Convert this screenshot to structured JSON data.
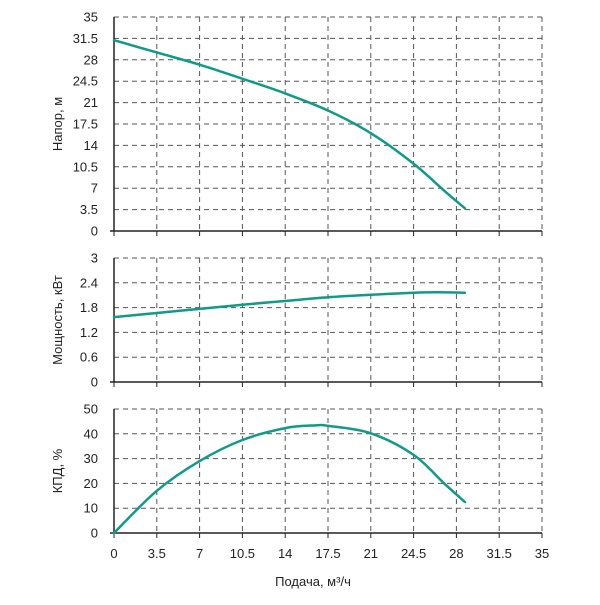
{
  "chart_data": [
    {
      "type": "line",
      "ylabel": "Напор, м",
      "xlim": [
        0,
        35
      ],
      "ylim": [
        0,
        35
      ],
      "xticks": [
        "0",
        "3.5",
        "7",
        "10.5",
        "14",
        "17.5",
        "21",
        "24.5",
        "28",
        "31.5",
        "35"
      ],
      "yticks": [
        "0",
        "3.5",
        "7",
        "10.5",
        "14",
        "17.5",
        "21",
        "24.5",
        "28",
        "31.5",
        "35"
      ],
      "grid": true,
      "show_xtick_labels": false,
      "series": [
        {
          "x": [
            0,
            3.5,
            7,
            10.5,
            14,
            17.5,
            21,
            24.5,
            27,
            28.7
          ],
          "y": [
            31.2,
            29.2,
            27.2,
            24.9,
            22.5,
            19.7,
            16.0,
            11.0,
            6.6,
            3.7
          ]
        }
      ]
    },
    {
      "type": "line",
      "ylabel": "Мощность, кВт",
      "xlim": [
        0,
        35
      ],
      "ylim": [
        0,
        3
      ],
      "xticks": [
        "0",
        "3.5",
        "7",
        "10.5",
        "14",
        "17.5",
        "21",
        "24.5",
        "28",
        "31.5",
        "35"
      ],
      "yticks": [
        "0",
        "0.6",
        "1.2",
        "1.8",
        "2.4",
        "3"
      ],
      "grid": true,
      "show_xtick_labels": false,
      "series": [
        {
          "x": [
            0,
            3.5,
            7,
            10.5,
            14,
            17.5,
            21,
            24.5,
            26.5,
            28.7
          ],
          "y": [
            1.57,
            1.67,
            1.77,
            1.87,
            1.96,
            2.05,
            2.11,
            2.16,
            2.17,
            2.16
          ]
        }
      ]
    },
    {
      "type": "line",
      "ylabel": "КПД, %",
      "xlabel": "Подача, м³/ч",
      "xlim": [
        0,
        35
      ],
      "ylim": [
        0,
        50
      ],
      "xticks": [
        "0",
        "3.5",
        "7",
        "10.5",
        "14",
        "17.5",
        "21",
        "24.5",
        "28",
        "31.5",
        "35"
      ],
      "yticks": [
        "0",
        "10",
        "20",
        "30",
        "40",
        "50"
      ],
      "grid": true,
      "show_xtick_labels": true,
      "series": [
        {
          "x": [
            0,
            3.5,
            7,
            10.5,
            14,
            16.5,
            17.5,
            21,
            24.5,
            27,
            28.7
          ],
          "y": [
            0,
            17,
            29,
            37.5,
            42.3,
            43.4,
            43.2,
            40.2,
            31.5,
            20,
            12.5
          ]
        }
      ]
    }
  ],
  "colors": {
    "curve": "#0f9a8a",
    "axis": "#222222",
    "grid": "#555555"
  }
}
